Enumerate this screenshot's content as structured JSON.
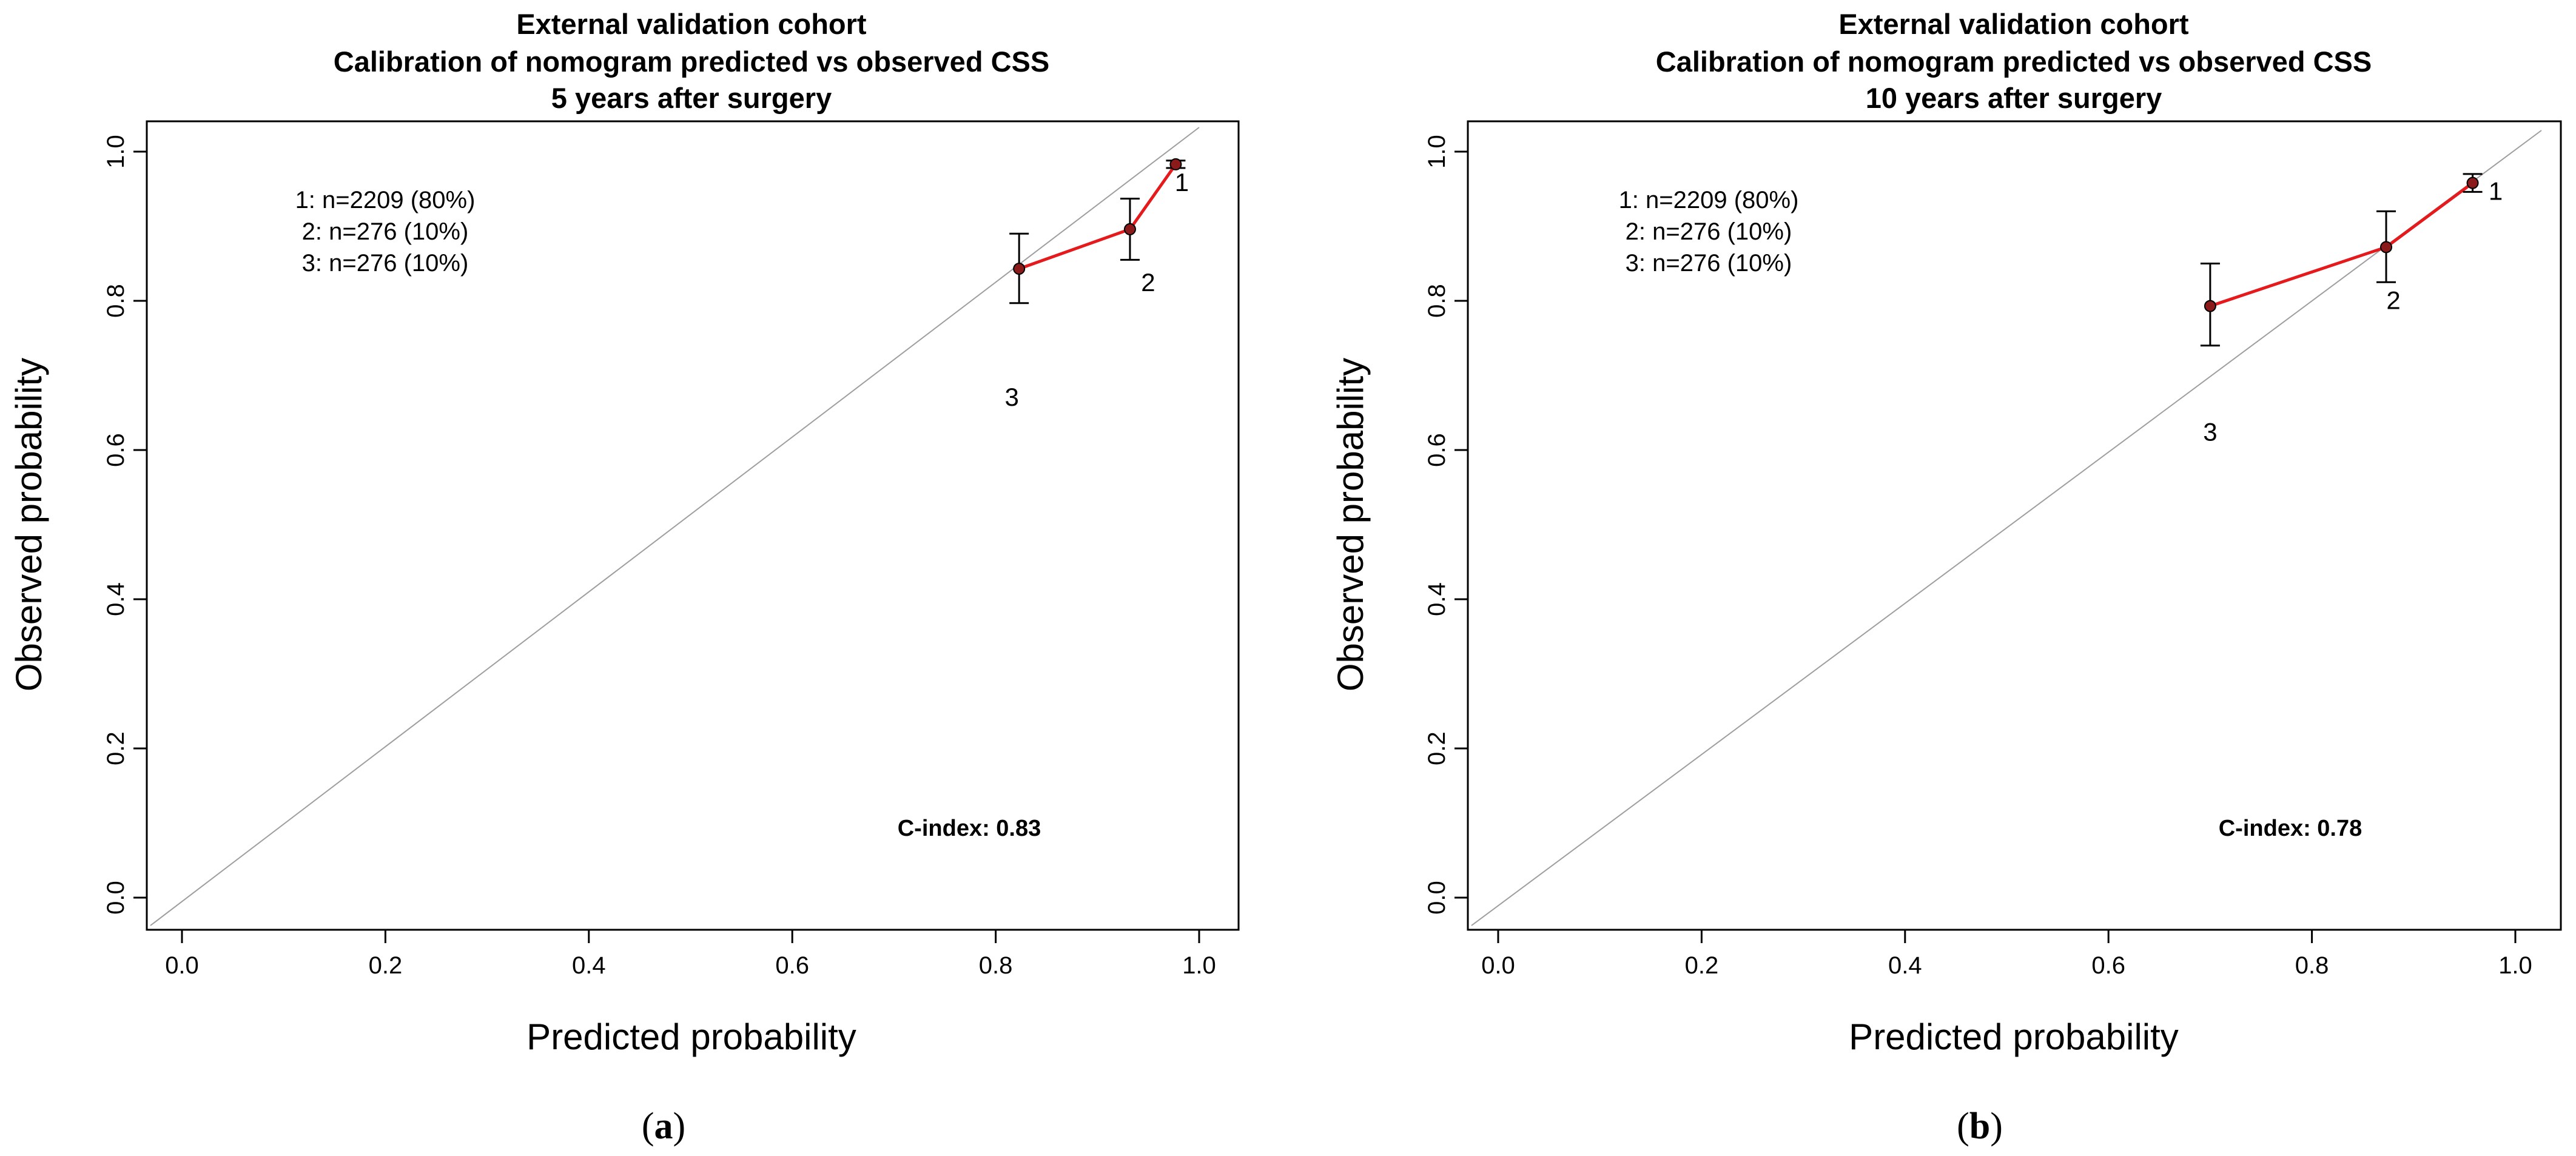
{
  "chart_data": [
    {
      "type": "line",
      "title_lines": [
        "External validation cohort",
        "Calibration of nomogram predicted vs observed CSS",
        "5 years after surgery"
      ],
      "xlabel": "Predicted probability",
      "ylabel": "Observed probability",
      "xlim": [
        0,
        1
      ],
      "ylim": [
        0,
        1
      ],
      "xticks": [
        "0.0",
        "0.2",
        "0.4",
        "0.6",
        "0.8",
        "1.0"
      ],
      "yticks": [
        "0.0",
        "0.2",
        "0.4",
        "0.6",
        "0.8",
        "1.0"
      ],
      "reference_line": "diagonal y = x",
      "groups": [
        "1: n=2209 (80%)",
        "2: n=276 (10%)",
        "3: n=276 (10%)"
      ],
      "points": [
        {
          "label": "1",
          "x": 0.977,
          "y": 0.983,
          "lower": 0.978,
          "upper": 0.988
        },
        {
          "label": "2",
          "x": 0.932,
          "y": 0.896,
          "lower": 0.855,
          "upper": 0.937
        },
        {
          "label": "3",
          "x": 0.823,
          "y": 0.843,
          "lower": 0.797,
          "upper": 0.89
        }
      ],
      "c_index": "C-index: 0.83",
      "caption": [
        "(",
        "a",
        ")"
      ]
    },
    {
      "type": "line",
      "title_lines": [
        "External validation cohort",
        "Calibration of nomogram predicted vs observed CSS",
        "10 years after surgery"
      ],
      "xlabel": "Predicted probability",
      "ylabel": "Observed probability",
      "xlim": [
        0,
        1
      ],
      "ylim": [
        0,
        1
      ],
      "xticks": [
        "0.0",
        "0.2",
        "0.4",
        "0.6",
        "0.8",
        "1.0"
      ],
      "yticks": [
        "0.0",
        "0.2",
        "0.4",
        "0.6",
        "0.8",
        "1.0"
      ],
      "reference_line": "diagonal y = x",
      "groups": [
        "1: n=2209 (80%)",
        "2: n=276 (10%)",
        "3: n=276 (10%)"
      ],
      "points": [
        {
          "label": "1",
          "x": 0.958,
          "y": 0.958,
          "lower": 0.946,
          "upper": 0.97
        },
        {
          "label": "2",
          "x": 0.873,
          "y": 0.872,
          "lower": 0.825,
          "upper": 0.92
        },
        {
          "label": "3",
          "x": 0.7,
          "y": 0.793,
          "lower": 0.74,
          "upper": 0.85
        }
      ],
      "c_index": "C-index: 0.78",
      "caption": [
        "(",
        "b",
        ")"
      ]
    }
  ],
  "colors": {
    "calibration_line": "#e41a1c",
    "point": "#8b1a1a",
    "diagonal": "#9e9e9e",
    "frame": "#000000"
  }
}
